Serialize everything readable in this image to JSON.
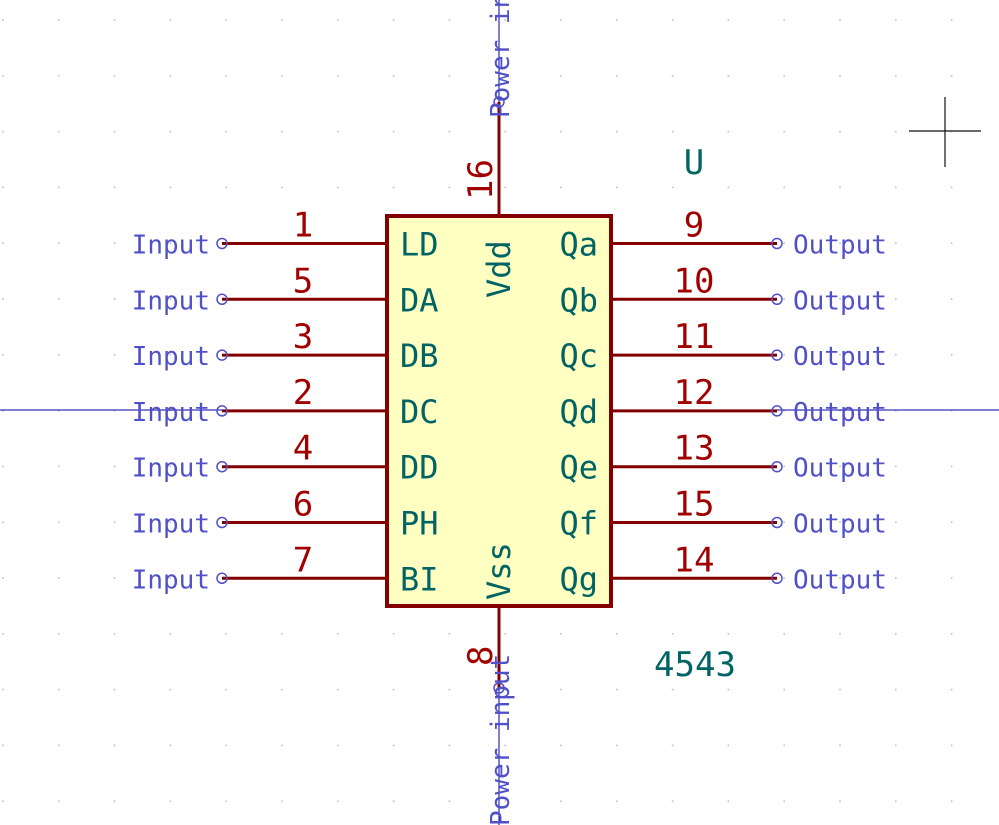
{
  "colors": {
    "background": "#ffffff",
    "grid_dot": "#c8c8c8",
    "body_fill": "#ffffc2",
    "body_outline": "#840000",
    "pin_line": "#840000",
    "pin_number": "#a00000",
    "pin_name": "#006464",
    "electrical_type": "#5050c8",
    "reference": "#006464",
    "value": "#006464",
    "crosshair": "#101010",
    "axis": "#0000a0"
  },
  "component": {
    "reference": "U",
    "value": "4543"
  },
  "left_pins": [
    {
      "number": "1",
      "name": "LD",
      "type": "Input"
    },
    {
      "number": "5",
      "name": "DA",
      "type": "Input"
    },
    {
      "number": "3",
      "name": "DB",
      "type": "Input"
    },
    {
      "number": "2",
      "name": "DC",
      "type": "Input"
    },
    {
      "number": "4",
      "name": "DD",
      "type": "Input"
    },
    {
      "number": "6",
      "name": "PH",
      "type": "Input"
    },
    {
      "number": "7",
      "name": "BI",
      "type": "Input"
    }
  ],
  "right_pins": [
    {
      "number": "9",
      "name": "Qa",
      "type": "Output"
    },
    {
      "number": "10",
      "name": "Qb",
      "type": "Output"
    },
    {
      "number": "11",
      "name": "Qc",
      "type": "Output"
    },
    {
      "number": "12",
      "name": "Qd",
      "type": "Output"
    },
    {
      "number": "13",
      "name": "Qe",
      "type": "Output"
    },
    {
      "number": "15",
      "name": "Qf",
      "type": "Output"
    },
    {
      "number": "14",
      "name": "Qg",
      "type": "Output"
    }
  ],
  "top_pin": {
    "number": "16",
    "name": "Vdd",
    "type": "Power input"
  },
  "bottom_pin": {
    "number": "8",
    "name": "Vss",
    "type": "Power input"
  }
}
